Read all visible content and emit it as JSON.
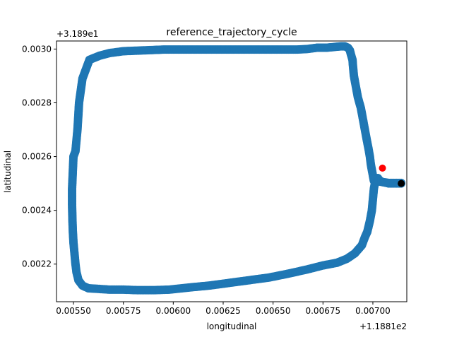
{
  "chart_data": {
    "type": "scatter",
    "title": "reference_trajectory_cycle",
    "xlabel": "longitudinal",
    "ylabel": "latitudinal",
    "x_offset_text": "+1.1881e2",
    "y_offset_text": "+3.189e1",
    "xlim": [
      0.005415,
      0.00717
    ],
    "ylim": [
      0.00206,
      0.00303
    ],
    "x_ticks": [
      0.0055,
      0.00575,
      0.006,
      0.00625,
      0.0065,
      0.00675,
      0.007
    ],
    "x_tick_labels": [
      "0.00550",
      "0.00575",
      "0.00600",
      "0.00625",
      "0.00650",
      "0.00675",
      "0.00700"
    ],
    "y_ticks": [
      0.0022,
      0.0024,
      0.0026,
      0.0028,
      0.003
    ],
    "y_tick_labels": [
      "0.0022",
      "0.0024",
      "0.0026",
      "0.0028",
      "0.0030"
    ],
    "grid": false,
    "series": [
      {
        "color": "#1f77b4",
        "marker": "circle",
        "x": [
          0.007142,
          0.00708,
          0.00705,
          0.007035,
          0.007025,
          0.007015,
          0.007005,
          0.007,
          0.006995,
          0.006985,
          0.006972,
          0.00696,
          0.006945,
          0.00691,
          0.00687,
          0.00682,
          0.00675,
          0.00667,
          0.00658,
          0.00648,
          0.00638,
          0.00628,
          0.00618,
          0.00608,
          0.00598,
          0.0059,
          0.00582,
          0.00575,
          0.00568,
          0.00562,
          0.005575,
          0.005545,
          0.005525,
          0.005515,
          0.00551,
          0.005505,
          0.0055,
          0.005497,
          0.005495,
          0.005493,
          0.005493,
          0.0055,
          0.00551,
          0.00552,
          0.005525,
          0.005528,
          0.005545,
          0.00558,
          0.00563,
          0.00568,
          0.00575,
          0.00585,
          0.00595,
          0.00605,
          0.00615,
          0.00625,
          0.00635,
          0.00645,
          0.00655,
          0.00662,
          0.00667,
          0.00672,
          0.00677,
          0.00681,
          0.00684,
          0.00686,
          0.006875,
          0.006885,
          0.00689,
          0.006898,
          0.0069,
          0.006905,
          0.006915,
          0.006925,
          0.00694,
          0.00695,
          0.00696,
          0.00697,
          0.006978,
          0.006985,
          0.00699,
          0.006995,
          0.007,
          0.007005,
          0.007015,
          0.00703,
          0.00705,
          0.00708,
          0.007142
        ],
        "y": [
          0.002502,
          0.002502,
          0.002505,
          0.00251,
          0.00252,
          0.00252,
          0.00248,
          0.00244,
          0.0024,
          0.00236,
          0.00232,
          0.0023,
          0.00227,
          0.00224,
          0.00222,
          0.002205,
          0.002195,
          0.00218,
          0.002165,
          0.00215,
          0.00214,
          0.00213,
          0.00212,
          0.002113,
          0.002105,
          0.002103,
          0.002103,
          0.002105,
          0.002105,
          0.002108,
          0.00211,
          0.00212,
          0.00214,
          0.00217,
          0.0022,
          0.00224,
          0.00228,
          0.00232,
          0.00236,
          0.00242,
          0.00248,
          0.0026,
          0.00262,
          0.0027,
          0.00276,
          0.0028,
          0.00289,
          0.00296,
          0.002975,
          0.002985,
          0.002992,
          0.002995,
          0.002998,
          0.002998,
          0.002998,
          0.002998,
          0.002998,
          0.002998,
          0.002998,
          0.002998,
          0.003,
          0.003005,
          0.003005,
          0.003008,
          0.00301,
          0.00301,
          0.003005,
          0.002995,
          0.00298,
          0.00296,
          0.00294,
          0.0029,
          0.00286,
          0.00282,
          0.00278,
          0.00274,
          0.0027,
          0.00266,
          0.00263,
          0.0026,
          0.00257,
          0.00255,
          0.00253,
          0.00251,
          0.002505,
          0.002508,
          0.002505,
          0.0025,
          0.0025
        ]
      }
    ],
    "start_point": {
      "x": 0.007142,
      "y": 0.0025,
      "color": "#000000"
    },
    "end_point": {
      "x": 0.007048,
      "y": 0.002557,
      "color": "#ff0000"
    }
  }
}
